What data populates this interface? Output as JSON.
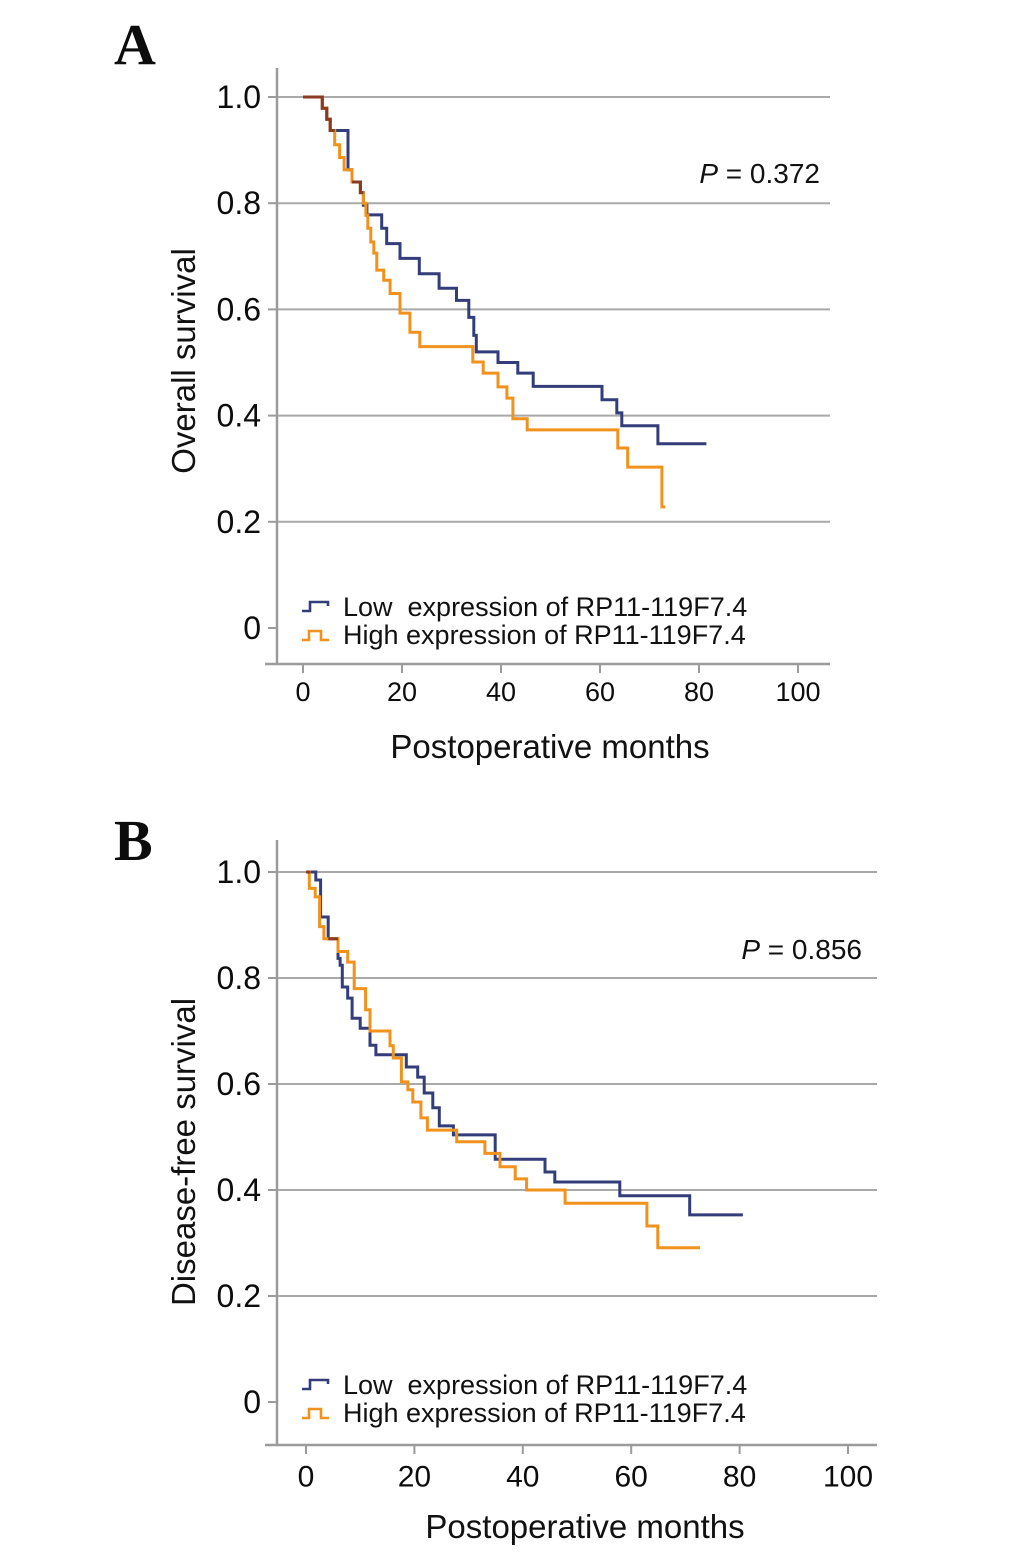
{
  "figure_type": "kaplan-meier-survival-figure",
  "colors": {
    "low_expression_line": "#333d7a",
    "high_expression_line": "#f0921c",
    "overlap_line": "#8a3a20",
    "gridline": "#a9a9a9",
    "axis_line": "#9b9b9b",
    "text": "#0c0c0c"
  },
  "chart_data": [
    {
      "id": "A",
      "panel_label": "A",
      "type": "line",
      "subtype": "kaplan-meier-step",
      "title": "",
      "ylabel": "Overall survival",
      "xlabel": "Postoperative months",
      "p_prefix": "P",
      "p_rest": " = 0.372",
      "annotation_p_value": "P = 0.372",
      "xlim": [
        0,
        100
      ],
      "ylim": [
        0,
        1.0
      ],
      "xticks": [
        0,
        20,
        40,
        60,
        80,
        100
      ],
      "ytick_values": [
        1.0,
        0.8,
        0.6,
        0.4,
        0.2,
        0
      ],
      "ytick_labels": [
        "1.0",
        "0.8",
        "0.6",
        "0.4",
        "0.2",
        "0"
      ],
      "grid": "horizontal",
      "legend_position": "lower-left-inside",
      "series": [
        {
          "name": "Low  expression of RP11-119F7.4",
          "color": "#333d7a",
          "steps": [
            [
              0,
              1.0
            ],
            [
              3.9,
              0.979
            ],
            [
              4.8,
              0.958
            ],
            [
              5.5,
              0.937
            ],
            [
              9.1,
              0.863
            ],
            [
              9.9,
              0.84
            ],
            [
              11.6,
              0.82
            ],
            [
              12.2,
              0.796
            ],
            [
              12.9,
              0.778
            ],
            [
              15.9,
              0.753
            ],
            [
              16.9,
              0.724
            ],
            [
              19.6,
              0.696
            ],
            [
              23.5,
              0.667
            ],
            [
              27.5,
              0.64
            ],
            [
              31,
              0.617
            ],
            [
              33.5,
              0.585
            ],
            [
              34.5,
              0.551
            ],
            [
              35,
              0.52
            ],
            [
              39.4,
              0.5
            ],
            [
              43.4,
              0.48
            ],
            [
              46.5,
              0.455
            ],
            [
              60.4,
              0.43
            ],
            [
              63.4,
              0.405
            ],
            [
              64.4,
              0.381
            ],
            [
              71.7,
              0.347
            ],
            [
              81.5,
              0.347
            ]
          ]
        },
        {
          "name": "High expression of RP11-119F7.4",
          "color": "#f0921c",
          "steps": [
            [
              0,
              1.0
            ],
            [
              3.9,
              0.979
            ],
            [
              4.8,
              0.958
            ],
            [
              5.5,
              0.937
            ],
            [
              6.4,
              0.91
            ],
            [
              7.4,
              0.886
            ],
            [
              8.3,
              0.863
            ],
            [
              9.9,
              0.84
            ],
            [
              11.6,
              0.82
            ],
            [
              12.2,
              0.8
            ],
            [
              12.7,
              0.777
            ],
            [
              13.1,
              0.753
            ],
            [
              13.7,
              0.727
            ],
            [
              14.3,
              0.706
            ],
            [
              14.9,
              0.674
            ],
            [
              16.3,
              0.655
            ],
            [
              17.6,
              0.63
            ],
            [
              19.6,
              0.593
            ],
            [
              21.6,
              0.557
            ],
            [
              23.6,
              0.53
            ],
            [
              34.3,
              0.501
            ],
            [
              36.4,
              0.48
            ],
            [
              39.4,
              0.454
            ],
            [
              41.2,
              0.433
            ],
            [
              42.4,
              0.394
            ],
            [
              45.3,
              0.373
            ],
            [
              63.6,
              0.339
            ],
            [
              65.6,
              0.303
            ],
            [
              72.5,
              0.228
            ],
            [
              73.2,
              0.228
            ]
          ]
        }
      ],
      "overlap_color": "#8a3a20",
      "overlap_steps": [
        [
          [
            0,
            1.0
          ],
          [
            3.9,
            0.979
          ],
          [
            4.8,
            0.958
          ],
          [
            5.5,
            0.937
          ],
          [
            6.4,
            0.937
          ]
        ],
        [
          [
            9.9,
            0.84
          ],
          [
            11.6,
            0.82
          ],
          [
            12.2,
            0.82
          ]
        ]
      ]
    },
    {
      "id": "B",
      "panel_label": "B",
      "type": "line",
      "subtype": "kaplan-meier-step",
      "title": "",
      "ylabel": "Disease-free survival",
      "xlabel": "Postoperative months",
      "p_prefix": "P",
      "p_rest": " = 0.856",
      "annotation_p_value": "P = 0.856",
      "xlim": [
        0,
        100
      ],
      "ylim": [
        0,
        1.0
      ],
      "xticks": [
        0,
        20,
        40,
        60,
        80,
        100
      ],
      "ytick_values": [
        1.0,
        0.8,
        0.6,
        0.4,
        0.2,
        0
      ],
      "ytick_labels": [
        "1.0",
        "0.8",
        "0.6",
        "0.4",
        "0.2",
        "0"
      ],
      "grid": "horizontal",
      "legend_position": "lower-left-inside",
      "series": [
        {
          "name": "Low  expression of RP11-119F7.4",
          "color": "#333d7a",
          "steps": [
            [
              0,
              1.0
            ],
            [
              1.8,
              0.985
            ],
            [
              2.7,
              0.915
            ],
            [
              4.1,
              0.874
            ],
            [
              5.9,
              0.837
            ],
            [
              6.3,
              0.824
            ],
            [
              6.7,
              0.783
            ],
            [
              7.7,
              0.762
            ],
            [
              8.5,
              0.724
            ],
            [
              10,
              0.705
            ],
            [
              11.8,
              0.673
            ],
            [
              12.9,
              0.655
            ],
            [
              18.5,
              0.632
            ],
            [
              20.6,
              0.613
            ],
            [
              21.8,
              0.583
            ],
            [
              23.4,
              0.555
            ],
            [
              24.6,
              0.521
            ],
            [
              27.2,
              0.504
            ],
            [
              34.9,
              0.458
            ],
            [
              44.1,
              0.434
            ],
            [
              45.9,
              0.415
            ],
            [
              57.9,
              0.389
            ],
            [
              70.8,
              0.353
            ],
            [
              80.6,
              0.353
            ]
          ]
        },
        {
          "name": "High expression of RP11-119F7.4",
          "color": "#f0921c",
          "steps": [
            [
              0,
              1.0
            ],
            [
              0.6,
              0.969
            ],
            [
              1.7,
              0.953
            ],
            [
              2.5,
              0.897
            ],
            [
              3.3,
              0.874
            ],
            [
              5.9,
              0.85
            ],
            [
              7.7,
              0.83
            ],
            [
              8.9,
              0.78
            ],
            [
              11,
              0.74
            ],
            [
              11.8,
              0.7
            ],
            [
              15.5,
              0.672
            ],
            [
              16.1,
              0.649
            ],
            [
              17.6,
              0.604
            ],
            [
              18.8,
              0.589
            ],
            [
              19.7,
              0.566
            ],
            [
              21.2,
              0.536
            ],
            [
              22.4,
              0.513
            ],
            [
              27.8,
              0.491
            ],
            [
              33,
              0.469
            ],
            [
              35.8,
              0.444
            ],
            [
              38.6,
              0.421
            ],
            [
              40.7,
              0.4
            ],
            [
              47.8,
              0.375
            ],
            [
              62.9,
              0.332
            ],
            [
              64.9,
              0.291
            ],
            [
              72.7,
              0.291
            ]
          ]
        }
      ],
      "overlap_color": "#8a3a20",
      "overlap_steps": [
        [
          [
            0,
            1.0
          ],
          [
            0.8,
            1.0
          ]
        ],
        [
          [
            4.1,
            0.874
          ],
          [
            5.9,
            0.874
          ]
        ]
      ]
    }
  ]
}
